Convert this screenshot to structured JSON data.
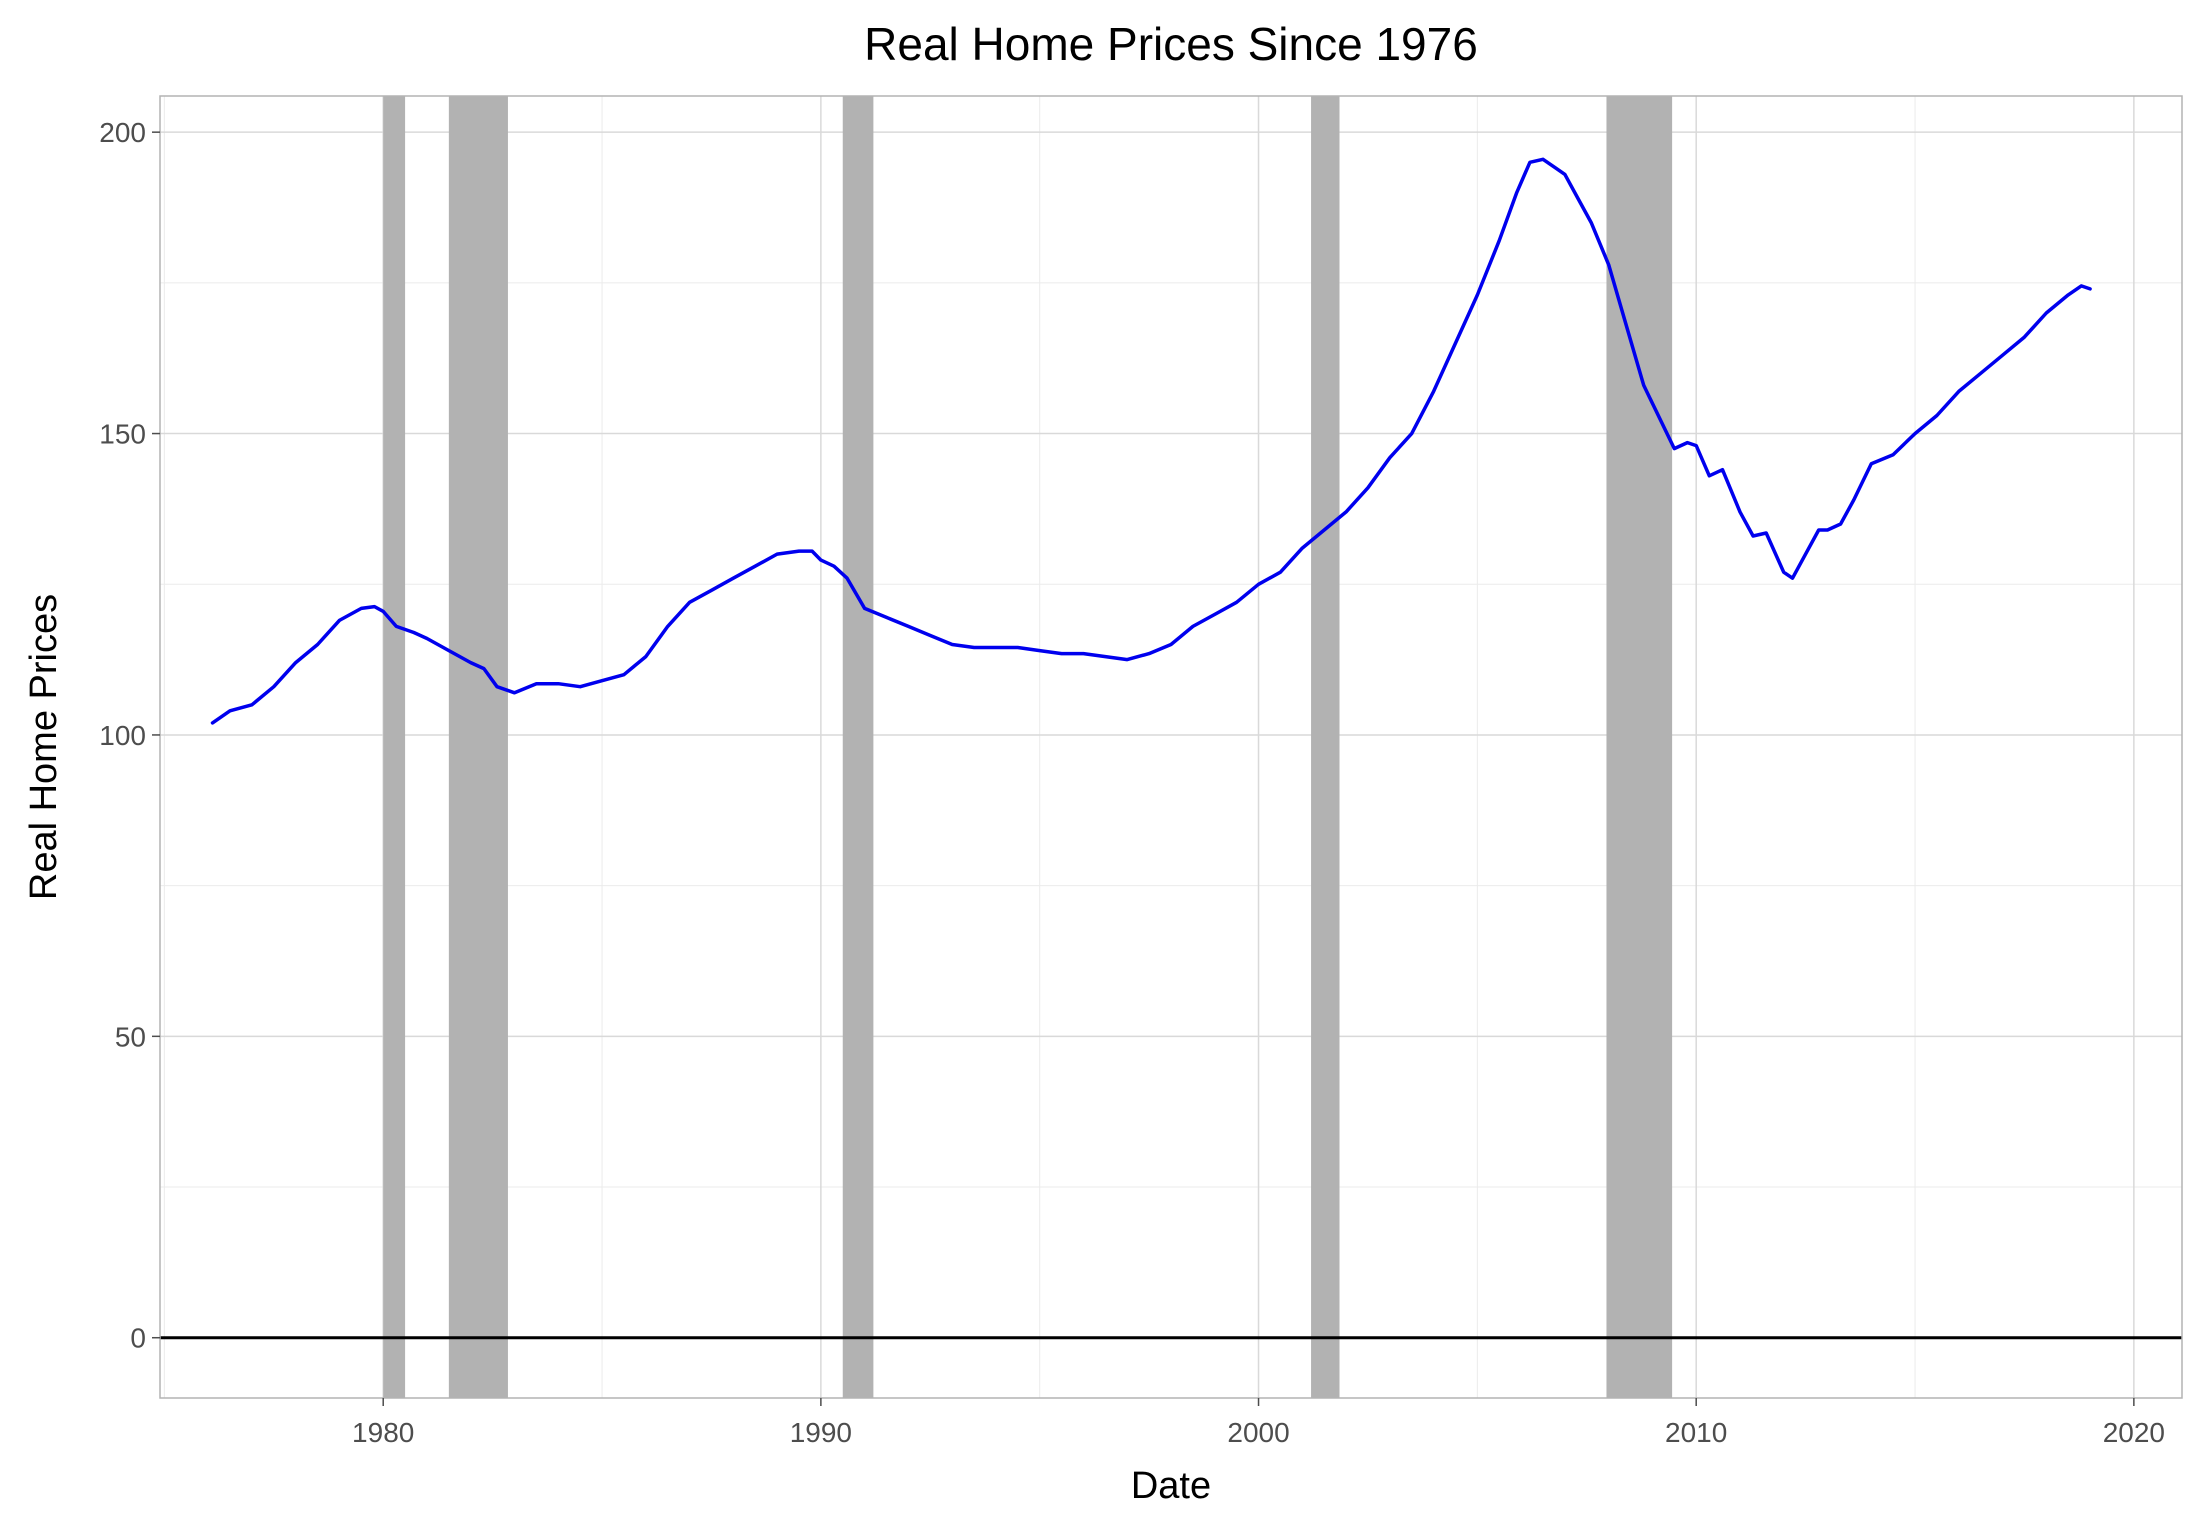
{
  "chart_data": {
    "type": "line",
    "title": "Real Home Prices Since 1976",
    "xlabel": "Date",
    "ylabel": "Real Home Prices",
    "xlim": [
      1974.9,
      2021.1
    ],
    "ylim": [
      -10,
      206
    ],
    "x_ticks": [
      1980,
      1990,
      2000,
      2010,
      2020
    ],
    "x_tick_labels": [
      "1980",
      "1990",
      "2000",
      "2010",
      "2020"
    ],
    "y_ticks": [
      0,
      50,
      100,
      150,
      200
    ],
    "y_tick_labels": [
      "0",
      "50",
      "100",
      "150",
      "200"
    ],
    "grid": true,
    "line_color": "#0000ee",
    "recession_color": "#b2b2b2",
    "recessions": [
      [
        1980.0,
        1980.5
      ],
      [
        1981.5,
        1982.85
      ],
      [
        1990.5,
        1991.2
      ],
      [
        2001.2,
        2001.85
      ],
      [
        2007.95,
        2009.45
      ]
    ],
    "reference_line": {
      "y": 0,
      "color": "#000000"
    },
    "series": [
      {
        "values": [
          [
            1976.1,
            102.0
          ],
          [
            1976.5,
            104.0
          ],
          [
            1977.0,
            105.0
          ],
          [
            1977.5,
            108.0
          ],
          [
            1978.0,
            112.0
          ],
          [
            1978.5,
            115.0
          ],
          [
            1979.0,
            119.0
          ],
          [
            1979.5,
            121.0
          ],
          [
            1979.8,
            121.3
          ],
          [
            1980.0,
            120.5
          ],
          [
            1980.3,
            118.0
          ],
          [
            1980.7,
            117.0
          ],
          [
            1981.0,
            116.0
          ],
          [
            1981.5,
            114.0
          ],
          [
            1982.0,
            112.0
          ],
          [
            1982.3,
            111.0
          ],
          [
            1982.6,
            108.0
          ],
          [
            1983.0,
            107.0
          ],
          [
            1983.5,
            108.5
          ],
          [
            1984.0,
            108.5
          ],
          [
            1984.5,
            108.0
          ],
          [
            1985.0,
            109.0
          ],
          [
            1985.5,
            110.0
          ],
          [
            1986.0,
            113.0
          ],
          [
            1986.5,
            118.0
          ],
          [
            1987.0,
            122.0
          ],
          [
            1987.5,
            124.0
          ],
          [
            1988.0,
            126.0
          ],
          [
            1988.5,
            128.0
          ],
          [
            1989.0,
            130.0
          ],
          [
            1989.5,
            130.5
          ],
          [
            1989.8,
            130.5
          ],
          [
            1990.0,
            129.0
          ],
          [
            1990.3,
            128.0
          ],
          [
            1990.6,
            126.0
          ],
          [
            1991.0,
            121.0
          ],
          [
            1991.5,
            119.5
          ],
          [
            1992.0,
            118.0
          ],
          [
            1992.5,
            116.5
          ],
          [
            1993.0,
            115.0
          ],
          [
            1993.5,
            114.5
          ],
          [
            1994.0,
            114.5
          ],
          [
            1994.5,
            114.5
          ],
          [
            1995.0,
            114.0
          ],
          [
            1995.5,
            113.5
          ],
          [
            1996.0,
            113.5
          ],
          [
            1996.5,
            113.0
          ],
          [
            1997.0,
            112.5
          ],
          [
            1997.5,
            113.5
          ],
          [
            1998.0,
            115.0
          ],
          [
            1998.5,
            118.0
          ],
          [
            1999.0,
            120.0
          ],
          [
            1999.5,
            122.0
          ],
          [
            2000.0,
            125.0
          ],
          [
            2000.5,
            127.0
          ],
          [
            2001.0,
            131.0
          ],
          [
            2001.5,
            134.0
          ],
          [
            2002.0,
            137.0
          ],
          [
            2002.5,
            141.0
          ],
          [
            2003.0,
            146.0
          ],
          [
            2003.5,
            150.0
          ],
          [
            2004.0,
            157.0
          ],
          [
            2004.5,
            165.0
          ],
          [
            2005.0,
            173.0
          ],
          [
            2005.5,
            182.0
          ],
          [
            2005.9,
            190.0
          ],
          [
            2006.2,
            195.0
          ],
          [
            2006.5,
            195.5
          ],
          [
            2006.8,
            194.0
          ],
          [
            2007.0,
            193.0
          ],
          [
            2007.3,
            189.0
          ],
          [
            2007.6,
            185.0
          ],
          [
            2008.0,
            178.0
          ],
          [
            2008.4,
            168.0
          ],
          [
            2008.8,
            158.0
          ],
          [
            2009.2,
            152.0
          ],
          [
            2009.5,
            147.5
          ],
          [
            2009.8,
            148.5
          ],
          [
            2010.0,
            148.0
          ],
          [
            2010.3,
            143.0
          ],
          [
            2010.6,
            144.0
          ],
          [
            2011.0,
            137.0
          ],
          [
            2011.3,
            133.0
          ],
          [
            2011.6,
            133.5
          ],
          [
            2012.0,
            127.0
          ],
          [
            2012.2,
            126.0
          ],
          [
            2012.5,
            130.0
          ],
          [
            2012.8,
            134.0
          ],
          [
            2013.0,
            134.0
          ],
          [
            2013.3,
            135.0
          ],
          [
            2013.6,
            139.0
          ],
          [
            2014.0,
            145.0
          ],
          [
            2014.5,
            146.5
          ],
          [
            2015.0,
            150.0
          ],
          [
            2015.5,
            153.0
          ],
          [
            2016.0,
            157.0
          ],
          [
            2016.5,
            160.0
          ],
          [
            2017.0,
            163.0
          ],
          [
            2017.5,
            166.0
          ],
          [
            2018.0,
            170.0
          ],
          [
            2018.5,
            173.0
          ],
          [
            2018.8,
            174.5
          ],
          [
            2019.0,
            174.0
          ]
        ]
      }
    ]
  }
}
